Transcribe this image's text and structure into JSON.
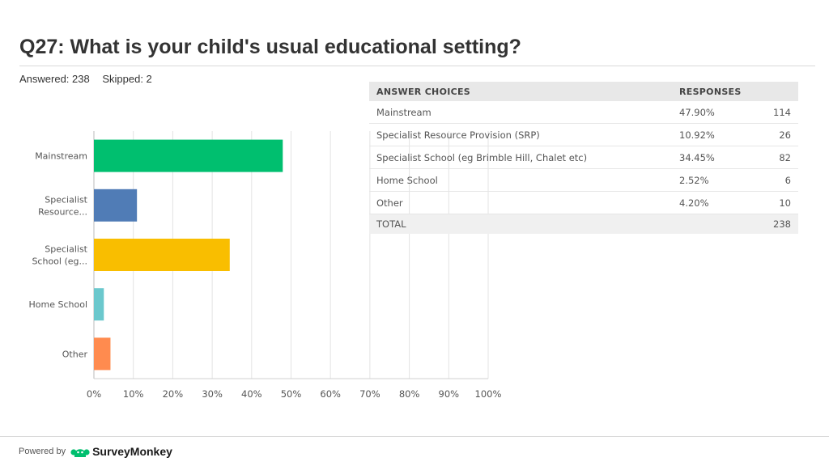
{
  "title": "Q27: What is your child's usual educational setting?",
  "stats": {
    "answered": "Answered: 238",
    "skipped": "Skipped: 2"
  },
  "chart_data": {
    "type": "bar",
    "orientation": "horizontal",
    "categories": [
      "Mainstream",
      "Specialist Resource...",
      "Specialist School (eg...",
      "Home School",
      "Other"
    ],
    "category_lines": [
      [
        "Mainstream"
      ],
      [
        "Specialist",
        "Resource..."
      ],
      [
        "Specialist",
        "School (eg..."
      ],
      [
        "Home School"
      ],
      [
        "Other"
      ]
    ],
    "values": [
      47.9,
      10.92,
      34.45,
      2.52,
      4.2
    ],
    "colors": [
      "#00bf6f",
      "#507cb6",
      "#f9be00",
      "#6bc8cd",
      "#ff8b4f"
    ],
    "xlim": [
      0,
      100
    ],
    "xticks": [
      0,
      10,
      20,
      30,
      40,
      50,
      60,
      70,
      80,
      90,
      100
    ],
    "xtick_labels": [
      "0%",
      "10%",
      "20%",
      "30%",
      "40%",
      "50%",
      "60%",
      "70%",
      "80%",
      "90%",
      "100%"
    ],
    "grid": true
  },
  "table": {
    "headers": {
      "choice": "ANSWER CHOICES",
      "responses": "RESPONSES"
    },
    "rows": [
      {
        "choice": "Mainstream",
        "pct": "47.90%",
        "count": "114"
      },
      {
        "choice": "Specialist Resource Provision (SRP)",
        "pct": "10.92%",
        "count": "26"
      },
      {
        "choice": "Specialist School (eg Brimble Hill, Chalet etc)",
        "pct": "34.45%",
        "count": "82"
      },
      {
        "choice": "Home School",
        "pct": "2.52%",
        "count": "6"
      },
      {
        "choice": "Other",
        "pct": "4.20%",
        "count": "10"
      }
    ],
    "total": {
      "label": "TOTAL",
      "count": "238"
    }
  },
  "footer": {
    "powered_by": "Powered by",
    "brand": "SurveyMonkey",
    "brand_color": "#00bf6f"
  }
}
